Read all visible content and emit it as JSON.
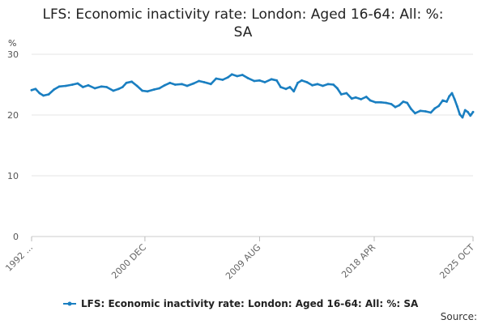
{
  "chart_data": {
    "type": "line",
    "title_line1": "LFS: Economic inactivity rate: London: Aged 16-64: All: %:",
    "title_line2": "SA",
    "unit_label": "%",
    "ylim": [
      0,
      30
    ],
    "yticks": [
      "0",
      "10",
      "20",
      "30"
    ],
    "xticks": [
      {
        "label": "1992 ...",
        "t": 1992.3
      },
      {
        "label": "2000 DEC",
        "t": 2000.9
      },
      {
        "label": "2009 AUG",
        "t": 2009.6
      },
      {
        "label": "2018 APR",
        "t": 2018.3
      },
      {
        "label": "2025 OCT",
        "t": 2025.8
      }
    ],
    "x_range": [
      1992.3,
      2025.8
    ],
    "color": "#1a7fc1",
    "grid": true,
    "legend_position": "bottom",
    "series": [
      {
        "name": "LFS: Economic inactivity rate: London: Aged 16-64: All: %: SA",
        "points": [
          [
            1992.3,
            24.1
          ],
          [
            1992.6,
            24.3
          ],
          [
            1992.9,
            23.6
          ],
          [
            1993.2,
            23.2
          ],
          [
            1993.6,
            23.4
          ],
          [
            1994.0,
            24.2
          ],
          [
            1994.4,
            24.7
          ],
          [
            1994.9,
            24.8
          ],
          [
            1995.4,
            25.0
          ],
          [
            1995.8,
            25.2
          ],
          [
            1996.2,
            24.6
          ],
          [
            1996.6,
            24.9
          ],
          [
            1997.1,
            24.4
          ],
          [
            1997.6,
            24.7
          ],
          [
            1998.0,
            24.6
          ],
          [
            1998.5,
            24.0
          ],
          [
            1998.9,
            24.3
          ],
          [
            1999.2,
            24.6
          ],
          [
            1999.5,
            25.3
          ],
          [
            1999.9,
            25.5
          ],
          [
            2000.3,
            24.8
          ],
          [
            2000.7,
            24.0
          ],
          [
            2001.1,
            23.9
          ],
          [
            2001.6,
            24.2
          ],
          [
            2002.0,
            24.4
          ],
          [
            2002.4,
            24.9
          ],
          [
            2002.8,
            25.3
          ],
          [
            2003.2,
            25.0
          ],
          [
            2003.7,
            25.1
          ],
          [
            2004.1,
            24.8
          ],
          [
            2004.6,
            25.2
          ],
          [
            2005.0,
            25.6
          ],
          [
            2005.4,
            25.4
          ],
          [
            2005.9,
            25.1
          ],
          [
            2006.3,
            26.0
          ],
          [
            2006.8,
            25.8
          ],
          [
            2007.2,
            26.2
          ],
          [
            2007.5,
            26.7
          ],
          [
            2007.9,
            26.4
          ],
          [
            2008.3,
            26.6
          ],
          [
            2008.7,
            26.1
          ],
          [
            2009.2,
            25.6
          ],
          [
            2009.6,
            25.7
          ],
          [
            2010.0,
            25.4
          ],
          [
            2010.5,
            25.9
          ],
          [
            2010.9,
            25.7
          ],
          [
            2011.2,
            24.6
          ],
          [
            2011.6,
            24.3
          ],
          [
            2011.9,
            24.6
          ],
          [
            2012.2,
            23.9
          ],
          [
            2012.5,
            25.3
          ],
          [
            2012.8,
            25.7
          ],
          [
            2013.2,
            25.4
          ],
          [
            2013.6,
            24.9
          ],
          [
            2014.0,
            25.1
          ],
          [
            2014.4,
            24.8
          ],
          [
            2014.8,
            25.1
          ],
          [
            2015.2,
            25.0
          ],
          [
            2015.5,
            24.4
          ],
          [
            2015.8,
            23.4
          ],
          [
            2016.2,
            23.6
          ],
          [
            2016.6,
            22.7
          ],
          [
            2016.9,
            22.9
          ],
          [
            2017.3,
            22.6
          ],
          [
            2017.7,
            23.0
          ],
          [
            2018.0,
            22.4
          ],
          [
            2018.4,
            22.1
          ],
          [
            2018.8,
            22.1
          ],
          [
            2019.2,
            22.0
          ],
          [
            2019.6,
            21.8
          ],
          [
            2019.9,
            21.3
          ],
          [
            2020.2,
            21.6
          ],
          [
            2020.5,
            22.2
          ],
          [
            2020.8,
            22.0
          ],
          [
            2021.1,
            21.0
          ],
          [
            2021.4,
            20.3
          ],
          [
            2021.8,
            20.7
          ],
          [
            2022.2,
            20.6
          ],
          [
            2022.6,
            20.4
          ],
          [
            2022.9,
            21.1
          ],
          [
            2023.2,
            21.5
          ],
          [
            2023.5,
            22.4
          ],
          [
            2023.8,
            22.2
          ],
          [
            2024.0,
            23.1
          ],
          [
            2024.2,
            23.6
          ],
          [
            2024.4,
            22.6
          ],
          [
            2024.6,
            21.4
          ],
          [
            2024.8,
            20.1
          ],
          [
            2025.0,
            19.6
          ],
          [
            2025.2,
            20.8
          ],
          [
            2025.4,
            20.5
          ],
          [
            2025.6,
            19.9
          ],
          [
            2025.8,
            20.5
          ]
        ]
      }
    ],
    "source_label": "Source:"
  }
}
